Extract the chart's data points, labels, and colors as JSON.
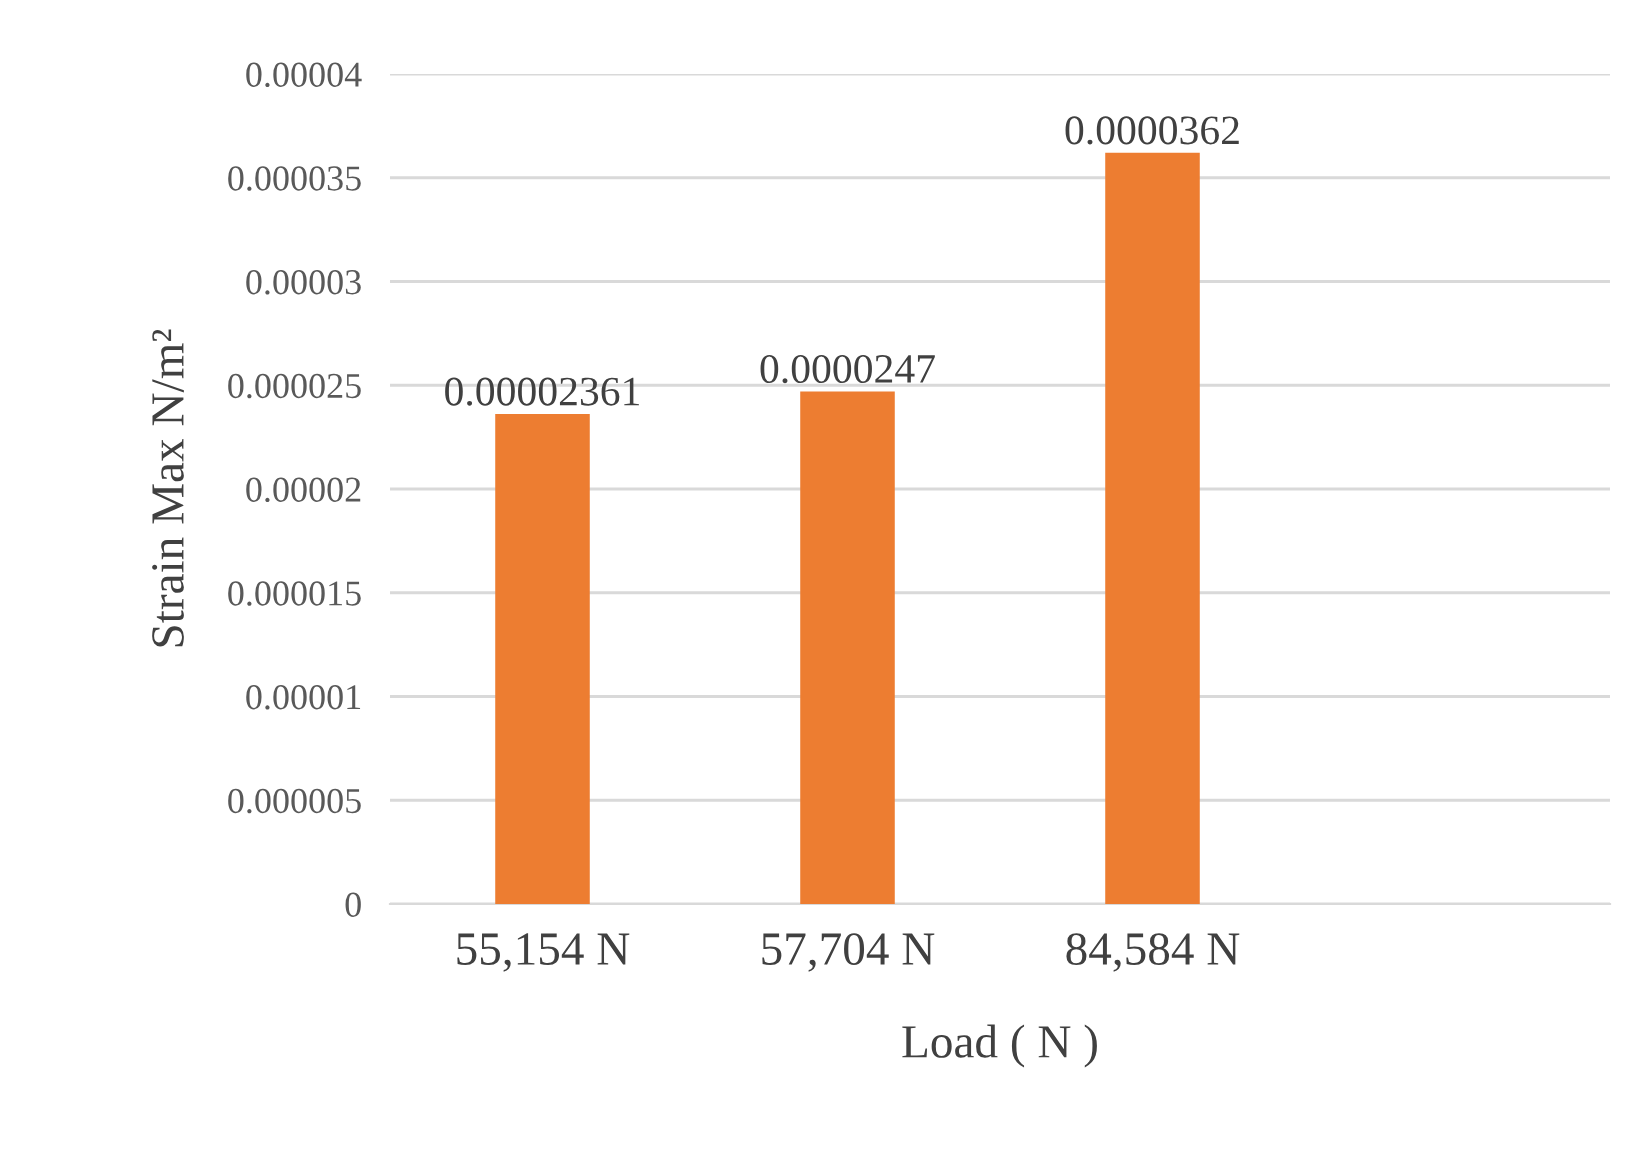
{
  "chart_data": {
    "type": "bar",
    "xlabel": "Load ( N )",
    "ylabel": "Strain Max N/m²",
    "categories": [
      "55,154 N",
      "57,704 N",
      "84,584 N",
      null
    ],
    "values": [
      2.361e-05,
      2.47e-05,
      3.62e-05,
      null
    ],
    "value_labels": [
      "0.00002361",
      "0.0000247",
      "0.0000362",
      null
    ],
    "color": "#ed7d31",
    "ylim": [
      0,
      4e-05
    ],
    "yticks": [
      0,
      {
        "value": 5e-06,
        "label": "0.000005"
      },
      {
        "value": 1e-05,
        "label": "0.00001"
      },
      {
        "value": 1.5e-05,
        "label": "0.000015"
      },
      {
        "value": 2e-05,
        "label": "0.00002"
      },
      {
        "value": 2.5e-05,
        "label": "0.000025"
      },
      {
        "value": 3e-05,
        "label": "0.00003"
      },
      {
        "value": 3.5e-05,
        "label": "0.000035"
      },
      {
        "value": 4e-05,
        "label": "0.00004"
      }
    ],
    "grid": "y",
    "legend": false
  }
}
